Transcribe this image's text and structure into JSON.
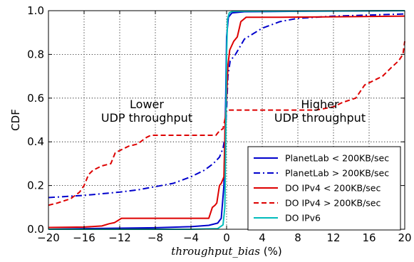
{
  "chart_data": {
    "type": "line",
    "title": "",
    "xlabel_var": "throughput_bias",
    "xlabel_unit": " (%)",
    "ylabel": "CDF",
    "xlim": [
      -20,
      20
    ],
    "ylim": [
      0,
      1
    ],
    "xticks": [
      -20,
      -16,
      -12,
      -8,
      -4,
      0,
      4,
      8,
      12,
      16,
      20
    ],
    "yticks": [
      0.0,
      0.2,
      0.4,
      0.6,
      0.8,
      1.0
    ],
    "xtick_labels": [
      "−20",
      "−16",
      "−12",
      "−8",
      "−4",
      "0",
      "4",
      "8",
      "12",
      "16",
      "20"
    ],
    "ytick_labels": [
      "0.0",
      "0.2",
      "0.4",
      "0.6",
      "0.8",
      "1.0"
    ],
    "grid": true,
    "legend_position": "lower-right",
    "annotations": [
      {
        "lines": [
          "Lower",
          "UDP throughput"
        ]
      },
      {
        "lines": [
          "Higher",
          "UDP throughput"
        ]
      }
    ],
    "series": [
      {
        "name": "PlanetLab < 200KB/sec",
        "color": "#0000cc",
        "style": "solid",
        "points": [
          [
            -20,
            0.0
          ],
          [
            -16,
            0.003
          ],
          [
            -12,
            0.005
          ],
          [
            -8,
            0.007
          ],
          [
            -4,
            0.012
          ],
          [
            -2,
            0.018
          ],
          [
            -1,
            0.028
          ],
          [
            -0.6,
            0.05
          ],
          [
            -0.3,
            0.2
          ],
          [
            -0.1,
            0.6
          ],
          [
            0,
            0.88
          ],
          [
            0.2,
            0.97
          ],
          [
            0.6,
            0.99
          ],
          [
            2,
            0.995
          ],
          [
            8,
            0.997
          ],
          [
            20,
            1.0
          ]
        ]
      },
      {
        "name": "PlanetLab > 200KB/sec",
        "color": "#0000cc",
        "style": "dashdot",
        "points": [
          [
            -20,
            0.145
          ],
          [
            -16,
            0.155
          ],
          [
            -12,
            0.17
          ],
          [
            -10,
            0.18
          ],
          [
            -8,
            0.195
          ],
          [
            -6,
            0.21
          ],
          [
            -4,
            0.24
          ],
          [
            -2.5,
            0.27
          ],
          [
            -1.5,
            0.3
          ],
          [
            -0.8,
            0.33
          ],
          [
            -0.4,
            0.37
          ],
          [
            -0.15,
            0.43
          ],
          [
            0,
            0.55
          ],
          [
            0.15,
            0.7
          ],
          [
            0.4,
            0.77
          ],
          [
            1,
            0.8
          ],
          [
            2,
            0.87
          ],
          [
            4,
            0.92
          ],
          [
            6,
            0.95
          ],
          [
            8,
            0.965
          ],
          [
            12,
            0.975
          ],
          [
            20,
            0.985
          ]
        ]
      },
      {
        "name": "DO IPv4 < 200KB/sec",
        "color": "#dd0000",
        "style": "solid",
        "points": [
          [
            -20,
            0.008
          ],
          [
            -16,
            0.01
          ],
          [
            -14,
            0.015
          ],
          [
            -13.2,
            0.025
          ],
          [
            -12.6,
            0.03
          ],
          [
            -12.2,
            0.04
          ],
          [
            -11.8,
            0.05
          ],
          [
            -8,
            0.05
          ],
          [
            -4,
            0.05
          ],
          [
            -2,
            0.05
          ],
          [
            -1.6,
            0.1
          ],
          [
            -1.3,
            0.11
          ],
          [
            -1.1,
            0.12
          ],
          [
            -0.8,
            0.2
          ],
          [
            -0.6,
            0.21
          ],
          [
            -0.3,
            0.24
          ],
          [
            -0.15,
            0.5
          ],
          [
            0,
            0.6
          ],
          [
            0.15,
            0.75
          ],
          [
            0.35,
            0.82
          ],
          [
            0.8,
            0.86
          ],
          [
            1.2,
            0.88
          ],
          [
            1.6,
            0.95
          ],
          [
            2.2,
            0.97
          ],
          [
            6,
            0.97
          ],
          [
            12,
            0.972
          ],
          [
            20,
            0.975
          ]
        ]
      },
      {
        "name": "DO IPv4 > 200KB/sec",
        "color": "#dd0000",
        "style": "dashed",
        "points": [
          [
            -20,
            0.11
          ],
          [
            -19,
            0.12
          ],
          [
            -17.5,
            0.14
          ],
          [
            -16.5,
            0.17
          ],
          [
            -16,
            0.2
          ],
          [
            -15.5,
            0.25
          ],
          [
            -15,
            0.27
          ],
          [
            -14,
            0.29
          ],
          [
            -13,
            0.3
          ],
          [
            -12.5,
            0.35
          ],
          [
            -12,
            0.36
          ],
          [
            -11.5,
            0.37
          ],
          [
            -11,
            0.38
          ],
          [
            -10,
            0.39
          ],
          [
            -9,
            0.42
          ],
          [
            -8.5,
            0.43
          ],
          [
            -4,
            0.43
          ],
          [
            -1.2,
            0.43
          ],
          [
            -0.8,
            0.45
          ],
          [
            -0.4,
            0.46
          ],
          [
            -0.1,
            0.52
          ],
          [
            0,
            0.545
          ],
          [
            4,
            0.545
          ],
          [
            10,
            0.545
          ],
          [
            12,
            0.56
          ],
          [
            13,
            0.58
          ],
          [
            14.5,
            0.6
          ],
          [
            15.5,
            0.66
          ],
          [
            16.5,
            0.68
          ],
          [
            17.5,
            0.7
          ],
          [
            18.5,
            0.74
          ],
          [
            19.3,
            0.77
          ],
          [
            19.8,
            0.8
          ],
          [
            20,
            0.86
          ]
        ]
      },
      {
        "name": "DO IPv6",
        "color": "#00bbbb",
        "style": "solid",
        "points": [
          [
            -20,
            0.0
          ],
          [
            -4,
            0.0
          ],
          [
            -1,
            0.003
          ],
          [
            -0.4,
            0.02
          ],
          [
            -0.2,
            0.1
          ],
          [
            -0.1,
            0.4
          ],
          [
            0,
            0.8
          ],
          [
            0.1,
            0.96
          ],
          [
            0.3,
            0.99
          ],
          [
            0.7,
            0.997
          ],
          [
            20,
            1.0
          ]
        ]
      }
    ]
  }
}
